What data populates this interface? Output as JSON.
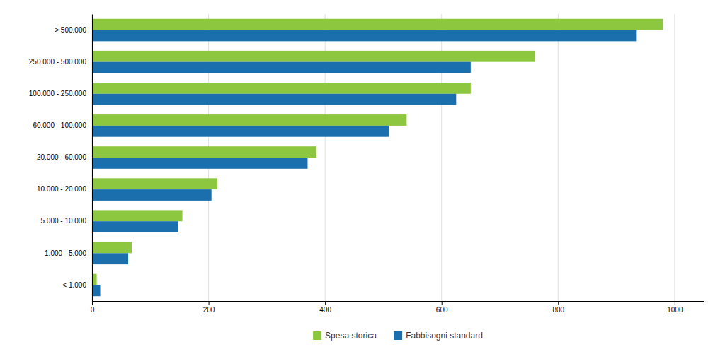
{
  "chart_data": {
    "type": "bar",
    "orientation": "horizontal",
    "categories": [
      "< 1.000",
      "1.000 - 5.000",
      "5.000 - 10.000",
      "10.000 - 20.000",
      "20.000 - 60.000",
      "60.000 - 100.000",
      "100.000 - 250.000",
      "250.000 - 500.000",
      "> 500.000"
    ],
    "series": [
      {
        "name": "Spesa storica",
        "color": "#8dc63f",
        "values": [
          8,
          68,
          155,
          215,
          385,
          540,
          650,
          760,
          980
        ]
      },
      {
        "name": "Fabbisogni standard",
        "color": "#1a6fac",
        "values": [
          14,
          62,
          148,
          205,
          370,
          510,
          625,
          650,
          935
        ]
      }
    ],
    "xlim": [
      0,
      1050
    ],
    "xticks": [
      0,
      200,
      400,
      600,
      800,
      1000
    ],
    "grid": true,
    "legend": "bottom"
  }
}
